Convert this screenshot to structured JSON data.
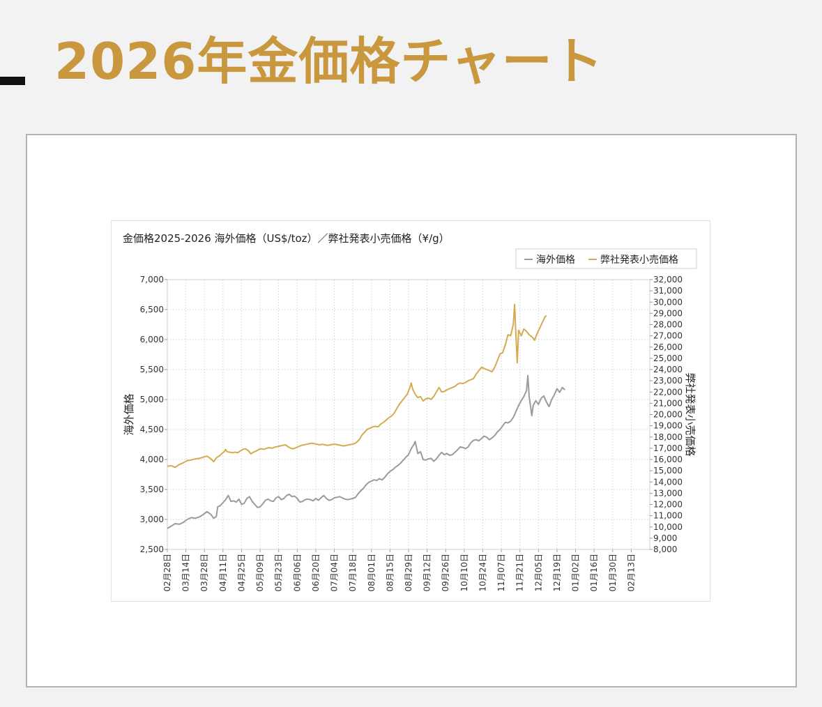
{
  "page": {
    "title": "2026年金価格チャート",
    "title_color": "#c9973d"
  },
  "chart_data": {
    "type": "line",
    "title": "金価格2025-2026 海外価格（US$/toz）／弊社発表小売価格（¥/g）",
    "legend_position": "top-right",
    "grid": true,
    "x_tick_labels": [
      "02月28日",
      "03月14日",
      "03月28日",
      "04月11日",
      "04月25日",
      "05月09日",
      "05月23日",
      "06月06日",
      "06月20日",
      "07月04日",
      "07月18日",
      "08月01日",
      "08月15日",
      "08月29日",
      "09月12日",
      "09月26日",
      "10月10日",
      "10月24日",
      "11月07日",
      "11月21日",
      "12月05日",
      "12月19日",
      "01月02日",
      "01月16日",
      "01月30日",
      "02月13日"
    ],
    "x_range_days": [
      0,
      364
    ],
    "y_left": {
      "label": "海外価格",
      "ylim": [
        2500,
        7000
      ],
      "ticks": [
        "2,500",
        "3,000",
        "3,500",
        "4,000",
        "4,500",
        "5,000",
        "5,500",
        "6,000",
        "6,500",
        "7,000"
      ]
    },
    "y_right": {
      "label": "弊社発表小売価格",
      "ylim": [
        8000,
        32000
      ],
      "ticks": [
        "8,000",
        "9,000",
        "10,000",
        "11,000",
        "12,000",
        "13,000",
        "14,000",
        "15,000",
        "16,000",
        "17,000",
        "18,000",
        "19,000",
        "20,000",
        "21,000",
        "22,000",
        "23,000",
        "24,000",
        "25,000",
        "26,000",
        "27,000",
        "28,000",
        "29,000",
        "30,000",
        "31,000",
        "32,000"
      ]
    },
    "series": [
      {
        "name": "海外価格",
        "axis": "left",
        "color": "#9a9aa2",
        "points": [
          [
            0,
            2850
          ],
          [
            3,
            2890
          ],
          [
            6,
            2930
          ],
          [
            9,
            2920
          ],
          [
            12,
            2950
          ],
          [
            15,
            3000
          ],
          [
            18,
            3030
          ],
          [
            21,
            3020
          ],
          [
            24,
            3040
          ],
          [
            27,
            3080
          ],
          [
            30,
            3130
          ],
          [
            33,
            3080
          ],
          [
            35,
            3020
          ],
          [
            37,
            3050
          ],
          [
            38,
            3210
          ],
          [
            40,
            3230
          ],
          [
            42,
            3280
          ],
          [
            44,
            3330
          ],
          [
            46,
            3400
          ],
          [
            48,
            3300
          ],
          [
            50,
            3310
          ],
          [
            52,
            3290
          ],
          [
            54,
            3340
          ],
          [
            56,
            3250
          ],
          [
            58,
            3270
          ],
          [
            60,
            3350
          ],
          [
            62,
            3380
          ],
          [
            64,
            3300
          ],
          [
            66,
            3250
          ],
          [
            68,
            3200
          ],
          [
            70,
            3210
          ],
          [
            72,
            3260
          ],
          [
            74,
            3320
          ],
          [
            76,
            3340
          ],
          [
            78,
            3310
          ],
          [
            80,
            3300
          ],
          [
            82,
            3360
          ],
          [
            84,
            3380
          ],
          [
            86,
            3330
          ],
          [
            88,
            3350
          ],
          [
            90,
            3400
          ],
          [
            92,
            3420
          ],
          [
            94,
            3380
          ],
          [
            96,
            3390
          ],
          [
            98,
            3350
          ],
          [
            100,
            3290
          ],
          [
            102,
            3300
          ],
          [
            104,
            3330
          ],
          [
            106,
            3340
          ],
          [
            108,
            3330
          ],
          [
            110,
            3310
          ],
          [
            112,
            3350
          ],
          [
            114,
            3320
          ],
          [
            116,
            3360
          ],
          [
            118,
            3400
          ],
          [
            120,
            3350
          ],
          [
            122,
            3320
          ],
          [
            124,
            3330
          ],
          [
            126,
            3360
          ],
          [
            128,
            3370
          ],
          [
            130,
            3380
          ],
          [
            132,
            3360
          ],
          [
            134,
            3340
          ],
          [
            136,
            3330
          ],
          [
            138,
            3340
          ],
          [
            140,
            3350
          ],
          [
            142,
            3370
          ],
          [
            144,
            3430
          ],
          [
            146,
            3480
          ],
          [
            148,
            3520
          ],
          [
            150,
            3580
          ],
          [
            152,
            3620
          ],
          [
            154,
            3640
          ],
          [
            156,
            3660
          ],
          [
            158,
            3650
          ],
          [
            160,
            3680
          ],
          [
            162,
            3660
          ],
          [
            164,
            3700
          ],
          [
            166,
            3760
          ],
          [
            168,
            3800
          ],
          [
            170,
            3830
          ],
          [
            172,
            3870
          ],
          [
            174,
            3900
          ],
          [
            176,
            3940
          ],
          [
            178,
            3990
          ],
          [
            180,
            4040
          ],
          [
            182,
            4080
          ],
          [
            184,
            4180
          ],
          [
            186,
            4250
          ],
          [
            187,
            4300
          ],
          [
            188,
            4200
          ],
          [
            189,
            4100
          ],
          [
            191,
            4130
          ],
          [
            193,
            4000
          ],
          [
            195,
            3990
          ],
          [
            197,
            4010
          ],
          [
            199,
            4020
          ],
          [
            201,
            3970
          ],
          [
            203,
            4010
          ],
          [
            205,
            4070
          ],
          [
            207,
            4120
          ],
          [
            209,
            4080
          ],
          [
            211,
            4100
          ],
          [
            213,
            4070
          ],
          [
            215,
            4080
          ],
          [
            217,
            4120
          ],
          [
            219,
            4160
          ],
          [
            221,
            4210
          ],
          [
            223,
            4200
          ],
          [
            225,
            4180
          ],
          [
            227,
            4210
          ],
          [
            229,
            4280
          ],
          [
            231,
            4320
          ],
          [
            233,
            4330
          ],
          [
            235,
            4310
          ],
          [
            237,
            4350
          ],
          [
            239,
            4390
          ],
          [
            241,
            4370
          ],
          [
            243,
            4330
          ],
          [
            245,
            4360
          ],
          [
            247,
            4400
          ],
          [
            249,
            4460
          ],
          [
            251,
            4500
          ],
          [
            253,
            4560
          ],
          [
            255,
            4620
          ],
          [
            257,
            4610
          ],
          [
            259,
            4640
          ],
          [
            261,
            4700
          ],
          [
            263,
            4800
          ],
          [
            265,
            4900
          ],
          [
            267,
            4980
          ],
          [
            269,
            5050
          ],
          [
            271,
            5150
          ],
          [
            272,
            5400
          ],
          [
            273,
            5050
          ],
          [
            275,
            4730
          ],
          [
            276,
            4900
          ],
          [
            278,
            4980
          ],
          [
            280,
            4920
          ],
          [
            282,
            5020
          ],
          [
            284,
            5060
          ],
          [
            286,
            4960
          ],
          [
            288,
            4880
          ],
          [
            290,
            5000
          ],
          [
            292,
            5080
          ],
          [
            294,
            5180
          ],
          [
            296,
            5120
          ],
          [
            298,
            5200
          ],
          [
            300,
            5160
          ]
        ]
      },
      {
        "name": "弊社発表小売価格",
        "axis": "right",
        "color": "#d2ac4f",
        "points": [
          [
            0,
            15400
          ],
          [
            3,
            15450
          ],
          [
            6,
            15300
          ],
          [
            9,
            15550
          ],
          [
            12,
            15700
          ],
          [
            15,
            15900
          ],
          [
            18,
            15950
          ],
          [
            21,
            16050
          ],
          [
            24,
            16100
          ],
          [
            27,
            16200
          ],
          [
            30,
            16300
          ],
          [
            33,
            16050
          ],
          [
            35,
            15800
          ],
          [
            37,
            16150
          ],
          [
            39,
            16300
          ],
          [
            41,
            16500
          ],
          [
            43,
            16700
          ],
          [
            44,
            16900
          ],
          [
            45,
            16700
          ],
          [
            47,
            16650
          ],
          [
            49,
            16600
          ],
          [
            51,
            16650
          ],
          [
            53,
            16600
          ],
          [
            55,
            16750
          ],
          [
            57,
            16900
          ],
          [
            59,
            16950
          ],
          [
            61,
            16800
          ],
          [
            63,
            16500
          ],
          [
            65,
            16650
          ],
          [
            67,
            16750
          ],
          [
            69,
            16900
          ],
          [
            71,
            16950
          ],
          [
            73,
            16900
          ],
          [
            75,
            17000
          ],
          [
            77,
            17050
          ],
          [
            79,
            17000
          ],
          [
            81,
            17100
          ],
          [
            83,
            17150
          ],
          [
            85,
            17200
          ],
          [
            87,
            17250
          ],
          [
            89,
            17300
          ],
          [
            91,
            17150
          ],
          [
            93,
            17000
          ],
          [
            95,
            16950
          ],
          [
            97,
            17050
          ],
          [
            99,
            17150
          ],
          [
            101,
            17250
          ],
          [
            103,
            17300
          ],
          [
            105,
            17350
          ],
          [
            107,
            17400
          ],
          [
            109,
            17450
          ],
          [
            111,
            17400
          ],
          [
            113,
            17350
          ],
          [
            115,
            17300
          ],
          [
            117,
            17350
          ],
          [
            119,
            17300
          ],
          [
            121,
            17250
          ],
          [
            123,
            17300
          ],
          [
            125,
            17350
          ],
          [
            127,
            17350
          ],
          [
            129,
            17300
          ],
          [
            131,
            17250
          ],
          [
            133,
            17200
          ],
          [
            135,
            17250
          ],
          [
            137,
            17300
          ],
          [
            139,
            17350
          ],
          [
            141,
            17400
          ],
          [
            143,
            17550
          ],
          [
            145,
            17800
          ],
          [
            147,
            18200
          ],
          [
            149,
            18450
          ],
          [
            151,
            18700
          ],
          [
            153,
            18800
          ],
          [
            155,
            18900
          ],
          [
            157,
            18950
          ],
          [
            159,
            18900
          ],
          [
            161,
            19150
          ],
          [
            163,
            19300
          ],
          [
            165,
            19500
          ],
          [
            167,
            19700
          ],
          [
            169,
            19850
          ],
          [
            171,
            20100
          ],
          [
            173,
            20500
          ],
          [
            175,
            20900
          ],
          [
            177,
            21200
          ],
          [
            179,
            21500
          ],
          [
            181,
            21800
          ],
          [
            183,
            22400
          ],
          [
            184,
            22800
          ],
          [
            185,
            22300
          ],
          [
            187,
            21800
          ],
          [
            189,
            21500
          ],
          [
            191,
            21600
          ],
          [
            193,
            21200
          ],
          [
            195,
            21400
          ],
          [
            197,
            21450
          ],
          [
            199,
            21350
          ],
          [
            201,
            21600
          ],
          [
            203,
            22000
          ],
          [
            205,
            22400
          ],
          [
            207,
            22000
          ],
          [
            209,
            22050
          ],
          [
            211,
            22200
          ],
          [
            213,
            22300
          ],
          [
            215,
            22400
          ],
          [
            217,
            22500
          ],
          [
            219,
            22700
          ],
          [
            221,
            22800
          ],
          [
            223,
            22750
          ],
          [
            225,
            22850
          ],
          [
            227,
            23000
          ],
          [
            229,
            23100
          ],
          [
            231,
            23200
          ],
          [
            233,
            23600
          ],
          [
            235,
            23900
          ],
          [
            237,
            24200
          ],
          [
            239,
            24100
          ],
          [
            241,
            24000
          ],
          [
            243,
            23900
          ],
          [
            245,
            23800
          ],
          [
            247,
            24200
          ],
          [
            249,
            24800
          ],
          [
            251,
            25400
          ],
          [
            253,
            25500
          ],
          [
            255,
            26200
          ],
          [
            257,
            27100
          ],
          [
            259,
            27000
          ],
          [
            261,
            28000
          ],
          [
            262,
            29800
          ],
          [
            263,
            27000
          ],
          [
            264,
            24600
          ],
          [
            265,
            27500
          ],
          [
            267,
            27000
          ],
          [
            269,
            27600
          ],
          [
            271,
            27400
          ],
          [
            273,
            27100
          ],
          [
            275,
            26900
          ],
          [
            276,
            26800
          ],
          [
            277,
            26600
          ],
          [
            279,
            27200
          ],
          [
            281,
            27700
          ],
          [
            283,
            28200
          ],
          [
            285,
            28700
          ],
          [
            286,
            28800
          ]
        ]
      }
    ]
  }
}
